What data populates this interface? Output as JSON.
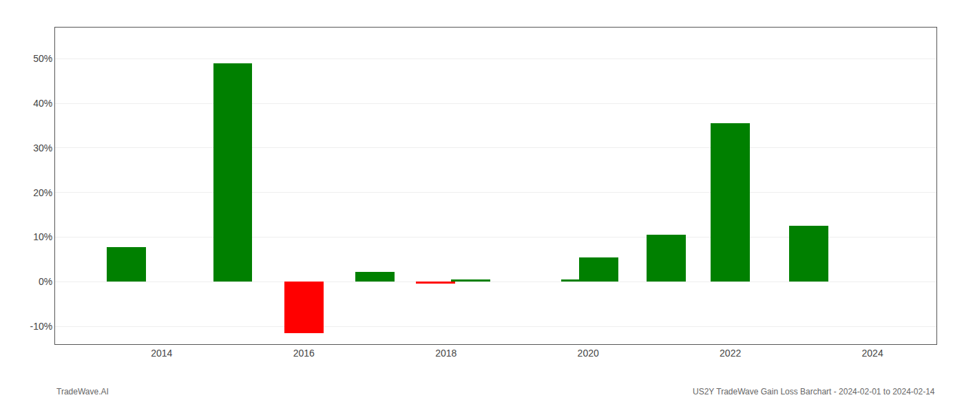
{
  "chart_data": {
    "type": "bar",
    "x": [
      2013.5,
      2015.0,
      2016.0,
      2017.0,
      2017.85,
      2018.35,
      2019.9,
      2020.15,
      2021.1,
      2022.0,
      2023.1
    ],
    "values": [
      7.8,
      49.0,
      -11.5,
      2.2,
      -0.4,
      0.5,
      0.5,
      5.5,
      10.5,
      35.5,
      12.5
    ],
    "colors": [
      "#008000",
      "#008000",
      "#ff0000",
      "#008000",
      "#ff0000",
      "#008000",
      "#008000",
      "#008000",
      "#008000",
      "#008000",
      "#008000"
    ],
    "xlim": [
      2012.5,
      2024.9
    ],
    "xticks": [
      2014,
      2016,
      2018,
      2020,
      2022,
      2024
    ],
    "ylim": [
      -14,
      57
    ],
    "yticks": [
      {
        "value": -10,
        "label": "-10%"
      },
      {
        "value": 0,
        "label": "0%"
      },
      {
        "value": 10,
        "label": "10%"
      },
      {
        "value": 20,
        "label": "20%"
      },
      {
        "value": 30,
        "label": "30%"
      },
      {
        "value": 40,
        "label": "40%"
      },
      {
        "value": 50,
        "label": "50%"
      }
    ],
    "grid": true,
    "annotations": [
      "TradeWave.AI",
      "US2Y TradeWave Gain Loss Barchart - 2024-02-01 to 2024-02-14"
    ]
  }
}
